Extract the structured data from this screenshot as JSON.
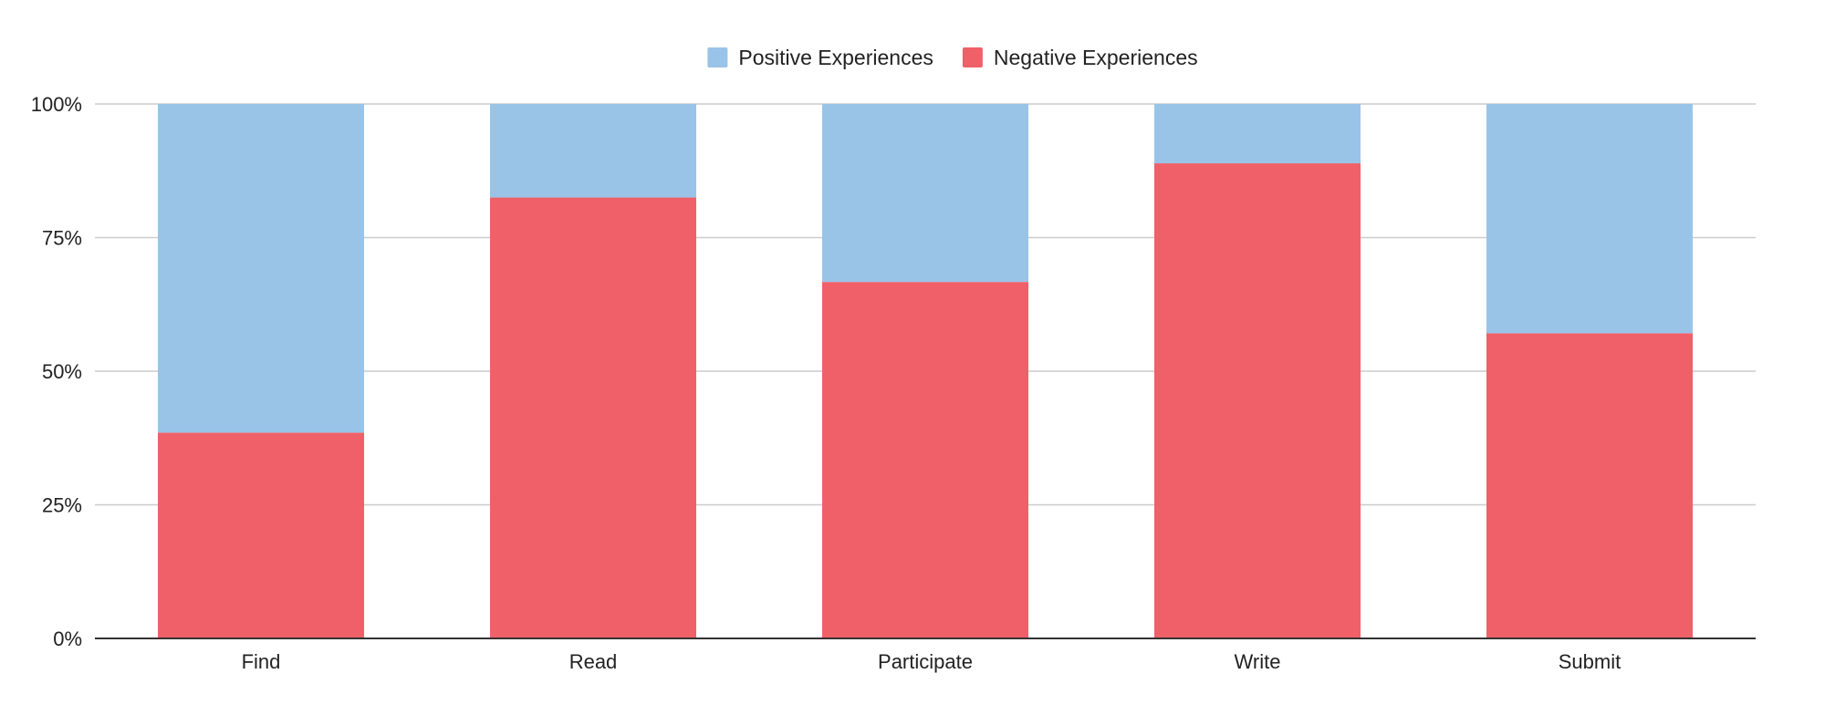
{
  "chart_data": {
    "type": "bar",
    "stacked": true,
    "normalized": true,
    "categories": [
      "Find",
      "Read",
      "Participate",
      "Write",
      "Submit"
    ],
    "series": [
      {
        "name": "Negative Experiences",
        "color": "#f06068",
        "values": [
          38.5,
          82.5,
          66.7,
          88.9,
          57.1
        ]
      },
      {
        "name": "Positive Experiences",
        "color": "#99c4e8",
        "values": [
          61.5,
          17.5,
          33.3,
          11.1,
          42.9
        ]
      }
    ],
    "legend": {
      "position": "top-center",
      "order": [
        "Positive Experiences",
        "Negative Experiences"
      ]
    },
    "yticks": [
      "0%",
      "25%",
      "50%",
      "75%",
      "100%"
    ],
    "ylim": [
      0,
      100
    ],
    "grid": true
  }
}
